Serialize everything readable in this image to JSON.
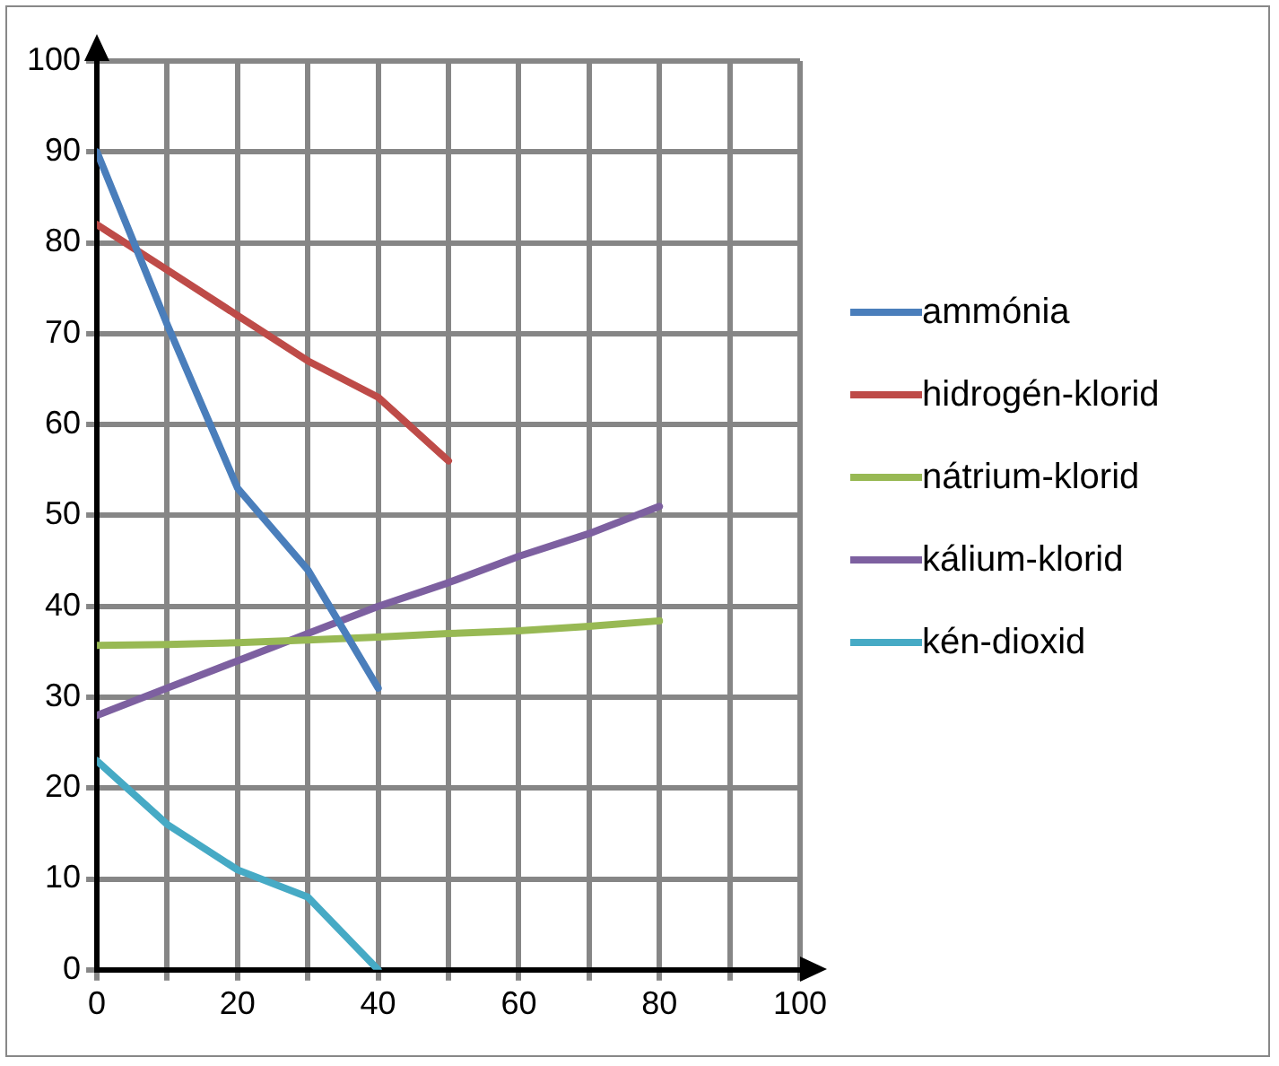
{
  "chart_data": {
    "type": "line",
    "series": [
      {
        "name": "ammónia",
        "color": "#4a7ebb",
        "x": [
          0,
          10,
          20,
          30,
          40
        ],
        "values": [
          90,
          71,
          53,
          44,
          31
        ]
      },
      {
        "name": "hidrogén-klorid",
        "color": "#be4b48",
        "x": [
          0,
          10,
          20,
          30,
          40,
          50
        ],
        "values": [
          82,
          77,
          72,
          67,
          63,
          56
        ]
      },
      {
        "name": "nátrium-klorid",
        "color": "#98b954",
        "x": [
          0,
          10,
          20,
          30,
          40,
          50,
          60,
          70,
          80
        ],
        "values": [
          35.7,
          35.8,
          36,
          36.3,
          36.6,
          37,
          37.3,
          37.8,
          38.4
        ]
      },
      {
        "name": "kálium-klorid",
        "color": "#7d60a0",
        "x": [
          0,
          10,
          20,
          30,
          40,
          50,
          60,
          70,
          80
        ],
        "values": [
          28,
          31,
          34,
          37,
          40,
          42.6,
          45.5,
          48,
          51
        ]
      },
      {
        "name": "kén-dioxid",
        "color": "#46aac5",
        "x": [
          0,
          10,
          20,
          30,
          40
        ],
        "values": [
          23,
          16,
          11,
          8,
          0
        ]
      }
    ],
    "xlim": [
      0,
      100
    ],
    "xticks": [
      0,
      {
        "value": 10,
        "label": null
      },
      20,
      {
        "value": 30,
        "label": null
      },
      40,
      {
        "value": 50,
        "label": null
      },
      60,
      {
        "value": 70,
        "label": null
      },
      80,
      {
        "value": 90,
        "label": null
      },
      100
    ],
    "ylim": [
      0,
      100
    ],
    "yticks": [
      0,
      10,
      20,
      30,
      40,
      50,
      60,
      70,
      80,
      90,
      100
    ],
    "grid": true,
    "legend": "right",
    "marker": "none",
    "line_style": "solid"
  }
}
